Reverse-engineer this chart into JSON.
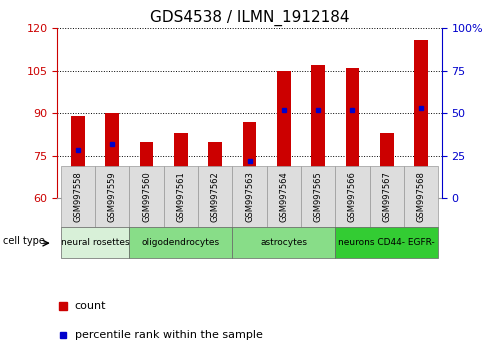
{
  "title": "GDS4538 / ILMN_1912184",
  "samples": [
    "GSM997558",
    "GSM997559",
    "GSM997560",
    "GSM997561",
    "GSM997562",
    "GSM997563",
    "GSM997564",
    "GSM997565",
    "GSM997566",
    "GSM997567",
    "GSM997568"
  ],
  "bar_top": [
    89,
    90,
    80,
    83,
    80,
    87,
    105,
    107,
    106,
    83,
    116
  ],
  "bar_bottom": 60,
  "blue_vals": [
    77,
    79,
    67,
    68,
    67,
    73,
    91,
    91,
    91,
    68,
    92
  ],
  "left_ylim": [
    60,
    120
  ],
  "right_ylim": [
    0,
    100
  ],
  "left_yticks": [
    60,
    75,
    90,
    105,
    120
  ],
  "right_yticks": [
    0,
    25,
    50,
    75,
    100
  ],
  "right_yticklabels": [
    "0",
    "25",
    "50",
    "75",
    "100%"
  ],
  "bar_color": "#cc0000",
  "blue_color": "#0000cc",
  "cell_types": [
    {
      "label": "neural rosettes",
      "start": 0,
      "end": 2,
      "color": "#d8f0d8"
    },
    {
      "label": "oligodendrocytes",
      "start": 2,
      "end": 5,
      "color": "#88dd88"
    },
    {
      "label": "astrocytes",
      "start": 5,
      "end": 8,
      "color": "#88dd88"
    },
    {
      "label": "neurons CD44- EGFR-",
      "start": 8,
      "end": 11,
      "color": "#33cc33"
    }
  ],
  "legend_count_color": "#cc0000",
  "legend_blue_color": "#0000cc",
  "left_axis_color": "#cc0000",
  "right_axis_color": "#0000cc",
  "xticklabel_bg": "#dddddd",
  "bar_width": 0.4
}
